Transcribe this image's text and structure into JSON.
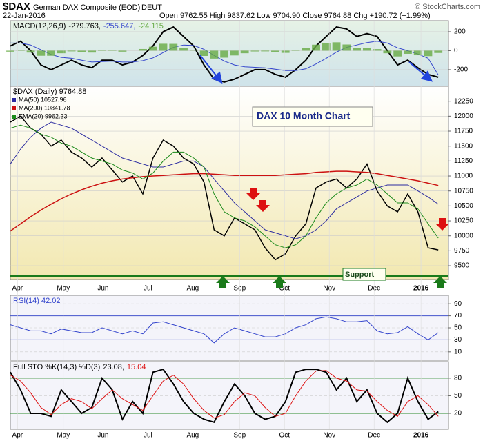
{
  "header": {
    "symbol": "$DAX",
    "name": "German DAX Composite (EOD)",
    "exchange": "DEUT",
    "date": "22-Jan-2016",
    "quote": "Open 9762.55 High 9837.62 Low 9704.90 Close 9764.88 Chg +190.72 (+1.99%)",
    "source": "© StockCharts.com"
  },
  "annotations": {
    "title_box": "DAX 10 Month Chart",
    "support": "Support"
  },
  "chart_data": [
    {
      "type": "line",
      "title": "MACD(12,26,9)",
      "legend": "inline",
      "ylim": [
        -375,
        316
      ],
      "yticks": [
        200,
        0,
        -200
      ],
      "xlim": [
        0,
        43
      ],
      "x": [
        0,
        1,
        2,
        3,
        4,
        5,
        6,
        7,
        8,
        9,
        10,
        11,
        12,
        13,
        14,
        15,
        16,
        17,
        18,
        19,
        20,
        21,
        22,
        23,
        24,
        25,
        26,
        27,
        28,
        29,
        30,
        31,
        32,
        33,
        34,
        35,
        36,
        37,
        38,
        39,
        40,
        41,
        42
      ],
      "series": [
        {
          "name": "-279.763,",
          "color": "#000000",
          "width": 2,
          "values": [
            50,
            100,
            0,
            -150,
            -200,
            -150,
            -100,
            -150,
            -180,
            -100,
            -100,
            -150,
            -120,
            -50,
            50,
            200,
            250,
            150,
            50,
            -150,
            -300,
            -330,
            -300,
            -250,
            -200,
            -200,
            -250,
            -280,
            -200,
            -100,
            50,
            150,
            250,
            230,
            150,
            180,
            150,
            0,
            -150,
            -100,
            -180,
            -250,
            -280
          ]
        },
        {
          "name": "-255.647,",
          "color": "#3344cc",
          "width": 1,
          "values": [
            80,
            80,
            60,
            10,
            -40,
            -70,
            -80,
            -100,
            -120,
            -115,
            -110,
            -120,
            -120,
            -105,
            -75,
            -20,
            35,
            60,
            55,
            15,
            -50,
            -110,
            -150,
            -170,
            -175,
            -180,
            -195,
            -210,
            -210,
            -190,
            -140,
            -80,
            -15,
            35,
            60,
            85,
            100,
            80,
            30,
            0,
            -35,
            -80,
            -256
          ]
        },
        {
          "name": "-24.115",
          "color": "#66aa44",
          "style": "bar",
          "values": [
            -10,
            7,
            -20,
            -53,
            -53,
            -27,
            -7,
            -17,
            -20,
            5,
            3,
            -10,
            0,
            18,
            42,
            73,
            72,
            30,
            -2,
            -55,
            -83,
            -73,
            -50,
            -27,
            -8,
            -7,
            -18,
            -23,
            3,
            30,
            63,
            77,
            88,
            65,
            30,
            32,
            17,
            -27,
            -60,
            -33,
            -48,
            -57,
            -24
          ]
        }
      ]
    },
    {
      "type": "line",
      "legend": "stacked",
      "ylim": [
        9270,
        12500
      ],
      "yticks": [
        9500,
        9750,
        10000,
        10250,
        10500,
        10750,
        11000,
        11250,
        11500,
        11750,
        12000,
        12250
      ],
      "xlim": [
        0,
        43
      ],
      "xticks": [
        {
          "value": 0.7,
          "label": "Apr"
        },
        {
          "value": 5.2,
          "label": "May"
        },
        {
          "value": 9.1,
          "label": "Jun"
        },
        {
          "value": 13.5,
          "label": "Jul"
        },
        {
          "value": 17.9,
          "label": "Aug"
        },
        {
          "value": 22.5,
          "label": "Sep"
        },
        {
          "value": 26.9,
          "label": "Oct"
        },
        {
          "value": 31.3,
          "label": "Nov"
        },
        {
          "value": 35.7,
          "label": "Dec"
        },
        {
          "value": 40.3,
          "label": "2016"
        }
      ],
      "x": [
        0,
        1,
        2,
        3,
        4,
        5,
        6,
        7,
        8,
        9,
        10,
        11,
        12,
        13,
        14,
        15,
        16,
        17,
        18,
        19,
        20,
        21,
        22,
        23,
        24,
        25,
        26,
        27,
        28,
        29,
        30,
        31,
        32,
        33,
        34,
        35,
        36,
        37,
        38,
        39,
        40,
        41,
        42
      ],
      "series": [
        {
          "name": "$DAX (Daily) 9764.88",
          "color": "#000000",
          "width": 1.5,
          "values": [
            11900,
            12000,
            11800,
            11700,
            11500,
            11600,
            11400,
            11300,
            11150,
            11300,
            11100,
            10900,
            11000,
            10700,
            11300,
            11600,
            11500,
            11300,
            11200,
            10900,
            10100,
            10000,
            10300,
            10200,
            10100,
            9800,
            9600,
            9700,
            10000,
            10200,
            10800,
            10900,
            10950,
            10800,
            10950,
            11200,
            10750,
            10500,
            10400,
            10700,
            10400,
            9800,
            9765
          ]
        },
        {
          "name": "MA(50) 10527.96",
          "color": "#2a2aa0",
          "width": 1,
          "values": [
            11200,
            11450,
            11650,
            11800,
            11900,
            11850,
            11800,
            11700,
            11600,
            11500,
            11400,
            11300,
            11250,
            11200,
            11150,
            11150,
            11200,
            11250,
            11250,
            11150,
            10950,
            10750,
            10550,
            10400,
            10250,
            10100,
            10050,
            10000,
            9950,
            10000,
            10100,
            10250,
            10450,
            10550,
            10650,
            10750,
            10800,
            10850,
            10850,
            10850,
            10750,
            10650,
            10528
          ]
        },
        {
          "name": "MA(200) 10841.78",
          "color": "#cc1111",
          "width": 1.5,
          "values": [
            10080,
            10200,
            10320,
            10430,
            10530,
            10620,
            10700,
            10770,
            10830,
            10880,
            10920,
            10950,
            10970,
            10990,
            11000,
            11010,
            11020,
            11030,
            11040,
            11040,
            11030,
            11020,
            11010,
            11010,
            11010,
            11010,
            11010,
            11020,
            11030,
            11040,
            11060,
            11070,
            11080,
            11080,
            11070,
            11060,
            11040,
            11010,
            10980,
            10950,
            10920,
            10880,
            10842
          ]
        },
        {
          "name": "EMA(20) 9962.33",
          "color": "#1a8a1a",
          "width": 1,
          "values": [
            11800,
            11850,
            11800,
            11700,
            11650,
            11550,
            11500,
            11400,
            11300,
            11250,
            11200,
            11100,
            11050,
            10950,
            11050,
            11250,
            11400,
            11400,
            11300,
            11150,
            10700,
            10400,
            10300,
            10250,
            10150,
            10000,
            9850,
            9800,
            9850,
            10000,
            10300,
            10550,
            10700,
            10800,
            10850,
            10950,
            10850,
            10700,
            10550,
            10550,
            10450,
            10200,
            9962
          ]
        }
      ]
    },
    {
      "type": "line",
      "legend": "inline",
      "ylim": [
        -4,
        104
      ],
      "yticks": [
        90,
        70,
        50,
        30,
        10
      ],
      "bands": [
        70,
        30
      ],
      "xlim": [
        0,
        43
      ],
      "x": [
        0,
        1,
        2,
        3,
        4,
        5,
        6,
        7,
        8,
        9,
        10,
        11,
        12,
        13,
        14,
        15,
        16,
        17,
        18,
        19,
        20,
        21,
        22,
        23,
        24,
        25,
        26,
        27,
        28,
        29,
        30,
        31,
        32,
        33,
        34,
        35,
        36,
        37,
        38,
        39,
        40,
        41,
        42
      ],
      "series": [
        {
          "name": "RSI(14) 42.02",
          "color": "#3344cc",
          "width": 1,
          "values": [
            55,
            50,
            45,
            45,
            40,
            48,
            45,
            42,
            42,
            50,
            45,
            40,
            45,
            40,
            58,
            60,
            55,
            50,
            45,
            40,
            25,
            40,
            50,
            45,
            40,
            35,
            35,
            40,
            50,
            55,
            65,
            68,
            65,
            60,
            60,
            62,
            45,
            40,
            42,
            52,
            40,
            30,
            42
          ]
        }
      ]
    },
    {
      "type": "line",
      "title": "Full STO %K(14,3) %D(3)",
      "legend": "inline",
      "ylim": [
        -7,
        108
      ],
      "yticks": [
        80,
        50,
        20
      ],
      "bands": [
        80,
        20
      ],
      "xlim": [
        0,
        43
      ],
      "xticks": [
        {
          "value": 0.7,
          "label": "Apr"
        },
        {
          "value": 5.2,
          "label": "May"
        },
        {
          "value": 9.1,
          "label": "Jun"
        },
        {
          "value": 13.5,
          "label": "Jul"
        },
        {
          "value": 17.9,
          "label": "Aug"
        },
        {
          "value": 22.5,
          "label": "Sep"
        },
        {
          "value": 26.9,
          "label": "Oct"
        },
        {
          "value": 31.3,
          "label": "Nov"
        },
        {
          "value": 35.7,
          "label": "Dec"
        },
        {
          "value": 40.3,
          "label": "2016"
        }
      ],
      "x": [
        0,
        1,
        2,
        3,
        4,
        5,
        6,
        7,
        8,
        9,
        10,
        11,
        12,
        13,
        14,
        15,
        16,
        17,
        18,
        19,
        20,
        21,
        22,
        23,
        24,
        25,
        26,
        27,
        28,
        29,
        30,
        31,
        32,
        33,
        34,
        35,
        36,
        37,
        38,
        39,
        40,
        41,
        42
      ],
      "series": [
        {
          "name": "23.08,",
          "color": "#000000",
          "width": 2,
          "values": [
            90,
            60,
            20,
            20,
            15,
            60,
            40,
            20,
            30,
            80,
            60,
            10,
            40,
            20,
            90,
            95,
            70,
            40,
            20,
            10,
            5,
            40,
            70,
            50,
            20,
            10,
            15,
            40,
            90,
            95,
            95,
            90,
            60,
            80,
            40,
            60,
            20,
            5,
            20,
            80,
            40,
            10,
            23
          ]
        },
        {
          "name": "15.04",
          "color": "#dd1111",
          "width": 1,
          "values": [
            85,
            75,
            55,
            30,
            18,
            35,
            45,
            40,
            28,
            45,
            60,
            45,
            35,
            25,
            50,
            75,
            85,
            70,
            45,
            25,
            12,
            18,
            40,
            55,
            50,
            30,
            15,
            20,
            50,
            75,
            92,
            93,
            80,
            75,
            60,
            58,
            40,
            25,
            15,
            40,
            50,
            35,
            15
          ]
        }
      ]
    }
  ]
}
